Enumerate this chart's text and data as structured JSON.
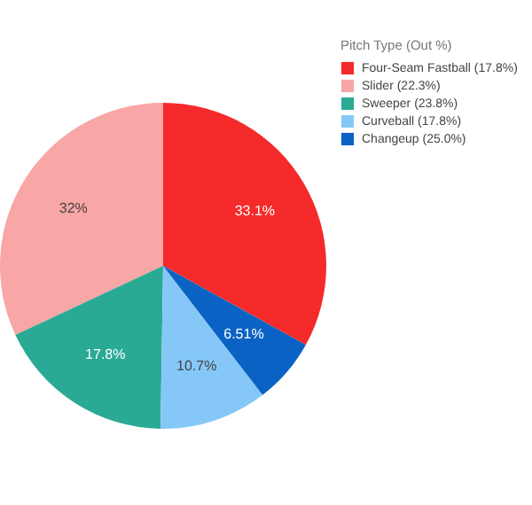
{
  "chart_data": {
    "type": "pie",
    "legend_title": "Pitch Type (Out %)",
    "categories": [
      "Four-Seam Fastball (17.8%)",
      "Slider (22.3%)",
      "Sweeper (23.8%)",
      "Curveball (17.8%)",
      "Changeup (25.0%)"
    ],
    "values": [
      33.1,
      32,
      17.8,
      10.7,
      6.51
    ],
    "value_labels": [
      "33.1%",
      "32%",
      "17.8%",
      "10.7%",
      "6.51%"
    ],
    "colors": [
      "#f52a2a",
      "#f8a6a6",
      "#2aaa95",
      "#85c8f8",
      "#0a62c4"
    ],
    "legend": "top right"
  }
}
